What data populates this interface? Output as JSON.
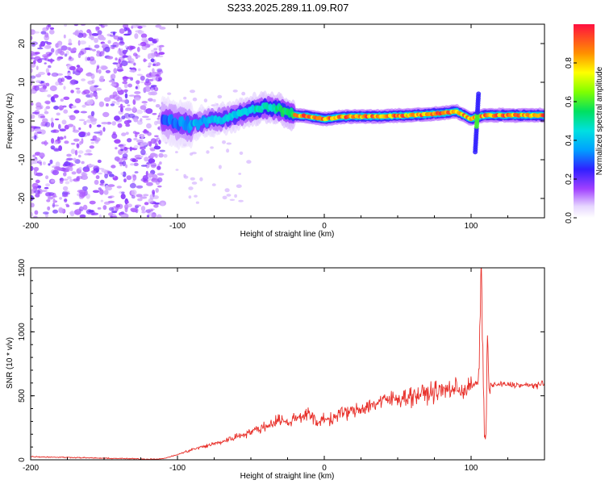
{
  "title": "S233.2025.289.11.09.R07",
  "colors": {
    "snr_line": "#e8302a",
    "background": "#ffffff",
    "axis": "#000000"
  },
  "chart_data": [
    {
      "type": "heatmap",
      "name": "spectrogram",
      "xlabel": "Height of straight line (km)",
      "ylabel": "Frequency (Hz)",
      "xlim": [
        -200,
        150
      ],
      "ylim": [
        -25,
        25
      ],
      "xticks": [
        -200,
        -100,
        0,
        100
      ],
      "yticks": [
        -20,
        -10,
        0,
        10,
        20
      ],
      "colorbar": {
        "label": "Normalized spectral amplitude",
        "range": [
          0,
          1
        ],
        "ticks": [
          "0.0",
          "0.2",
          "0.4",
          "0.6",
          "0.8"
        ],
        "tick_values": [
          0.0,
          0.2,
          0.4,
          0.6,
          0.8
        ],
        "colormap": "rainbow"
      },
      "noise_region_km": [
        -200,
        -110
      ],
      "ridge_centerline": {
        "x_km": [
          -108,
          -100,
          -90,
          -80,
          -70,
          -60,
          -50,
          -40,
          -30,
          -20,
          -10,
          0,
          10,
          20,
          40,
          60,
          80,
          90,
          95,
          100,
          104,
          110,
          120,
          135,
          150
        ],
        "freq_hz": [
          0.5,
          -0.5,
          -1.0,
          0.0,
          0.5,
          1.5,
          2.5,
          3.5,
          3.0,
          1.5,
          1.2,
          0.5,
          1.0,
          1.2,
          1.2,
          1.5,
          2.0,
          2.5,
          1.5,
          0.5,
          1.0,
          1.5,
          1.5,
          1.5,
          1.5
        ]
      },
      "spike": {
        "x_km": 104,
        "freq_range_hz": [
          -8,
          7
        ]
      }
    },
    {
      "type": "line",
      "name": "snr",
      "xlabel": "Height of straight line (km)",
      "ylabel": "SNR (10 * v/v)",
      "xlim": [
        -200,
        150
      ],
      "ylim": [
        0,
        1500
      ],
      "xticks": [
        -200,
        -100,
        0,
        100
      ],
      "yticks": [
        0,
        500,
        1000,
        1500
      ],
      "series": [
        {
          "name": "SNR",
          "x": [
            -200,
            -190,
            -180,
            -170,
            -160,
            -150,
            -140,
            -130,
            -120,
            -110,
            -100,
            -90,
            -80,
            -70,
            -60,
            -50,
            -40,
            -30,
            -25,
            -20,
            -10,
            -5,
            0,
            5,
            10,
            20,
            30,
            40,
            50,
            60,
            70,
            80,
            90,
            95,
            100,
            105,
            107,
            109,
            110,
            111,
            112,
            115,
            120,
            130,
            140,
            150
          ],
          "values": [
            25,
            22,
            20,
            18,
            15,
            12,
            10,
            8,
            5,
            8,
            40,
            80,
            110,
            140,
            180,
            220,
            260,
            320,
            280,
            330,
            360,
            280,
            330,
            310,
            360,
            380,
            420,
            460,
            480,
            500,
            520,
            540,
            560,
            540,
            580,
            600,
            1500,
            150,
            100,
            1100,
            600,
            580,
            590,
            585,
            580,
            590
          ]
        }
      ]
    }
  ]
}
